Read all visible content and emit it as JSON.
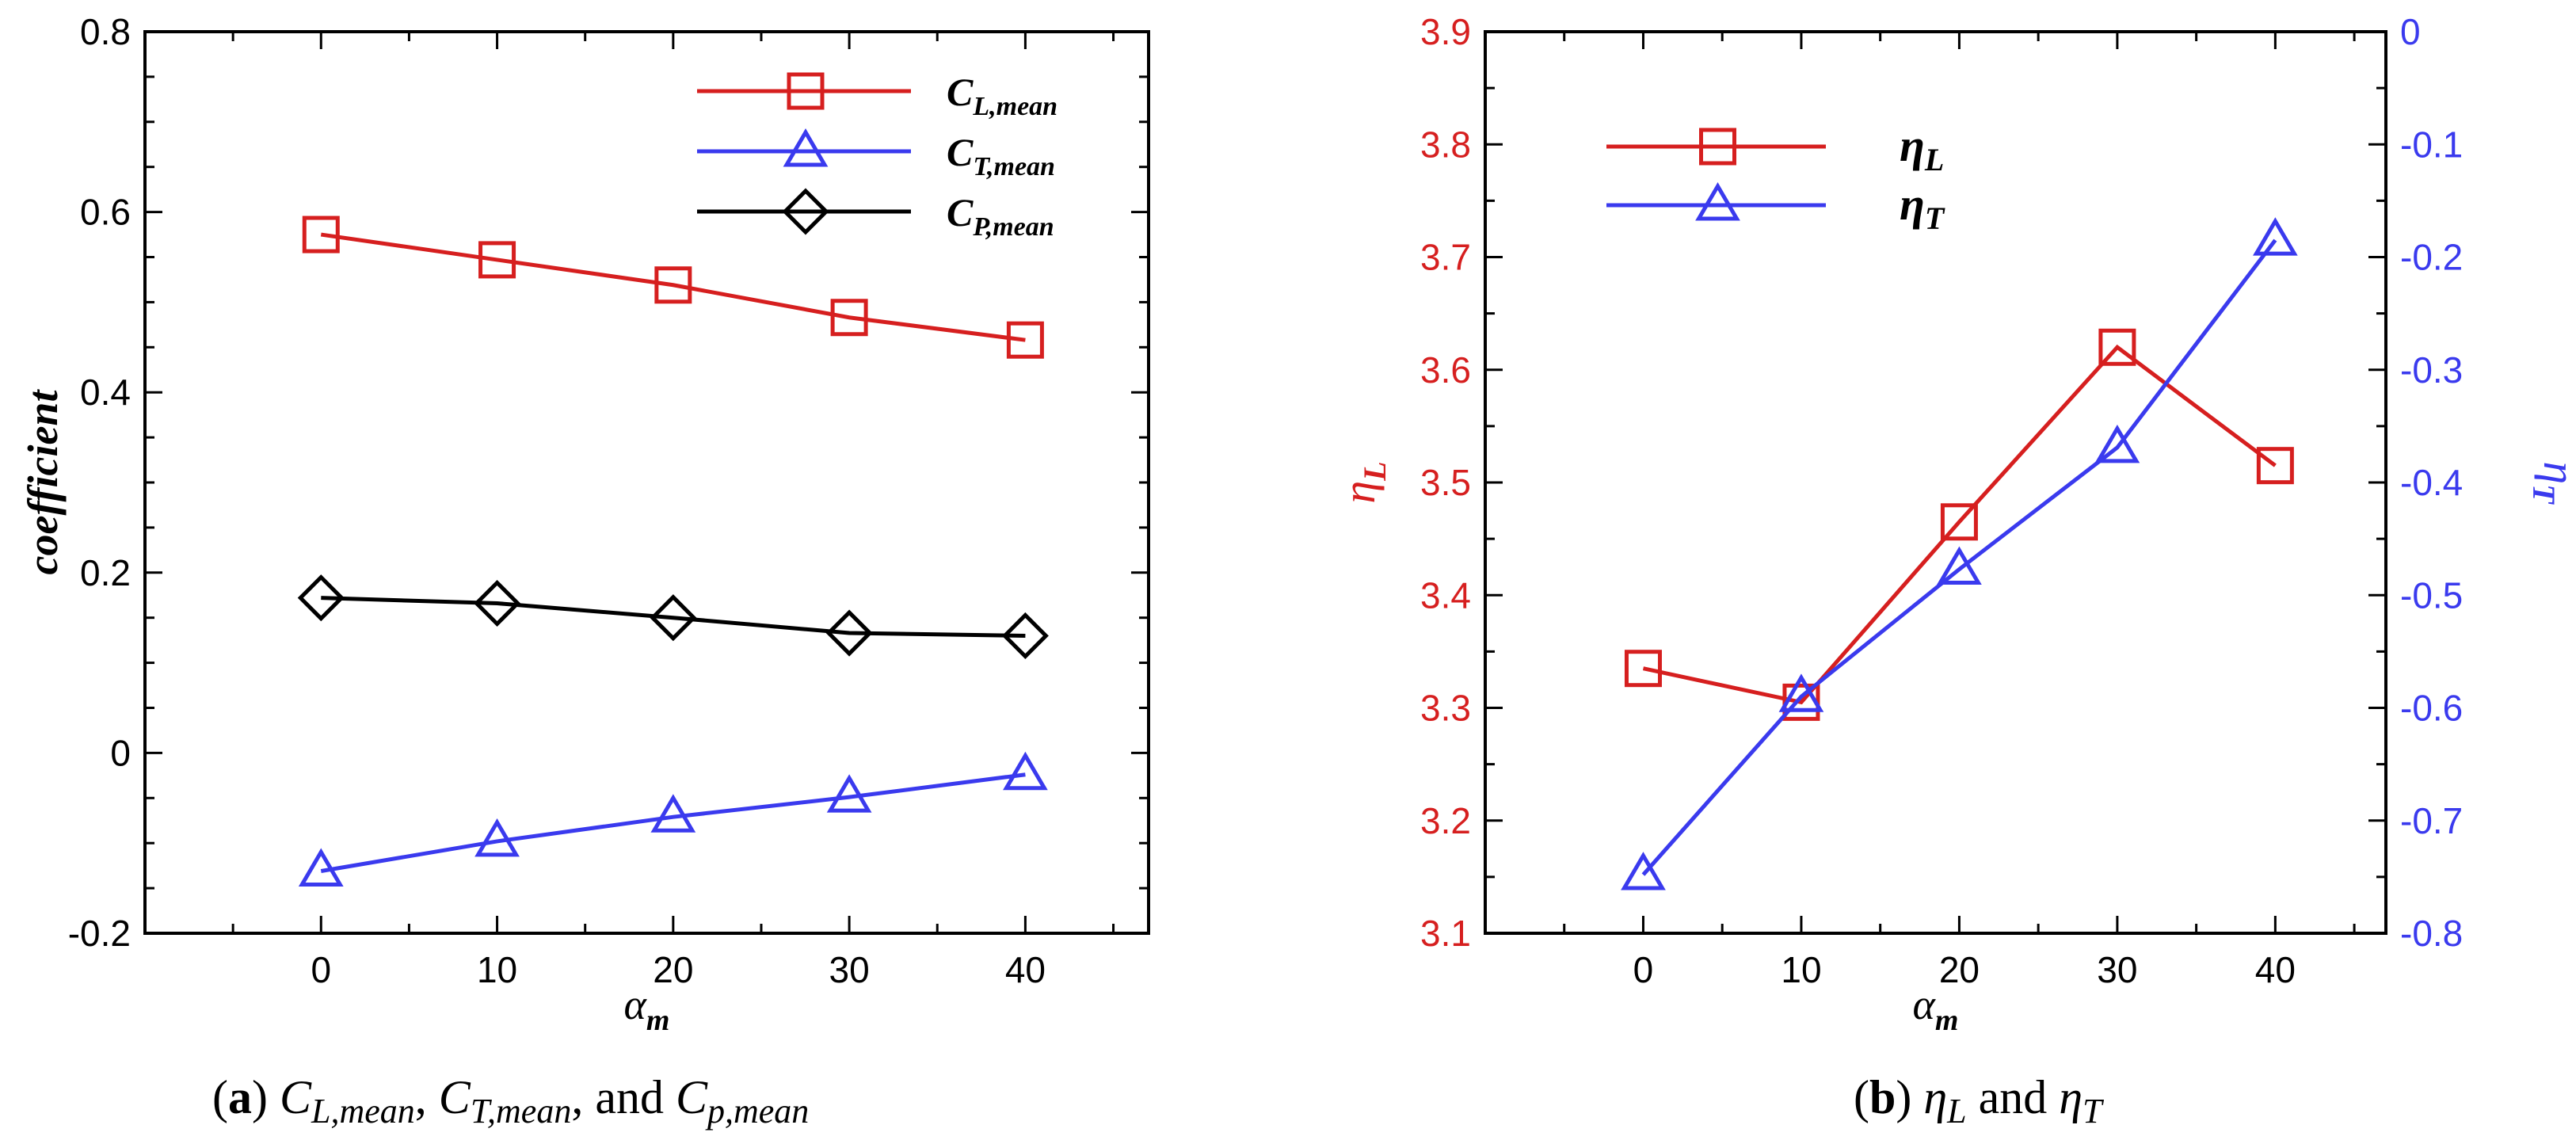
{
  "chart_data": [
    {
      "id": "a",
      "type": "line",
      "title": "",
      "x": [
        0,
        10,
        20,
        30,
        40
      ],
      "xlabel": "α",
      "xlabel_sub": "m",
      "ylabel": "coefficient",
      "xlim": [
        -10,
        47
      ],
      "ylim": [
        -0.2,
        0.8
      ],
      "xticks": [
        0,
        10,
        20,
        30,
        40
      ],
      "yticks": [
        -0.2,
        0,
        0.2,
        0.4,
        0.6,
        0.8
      ],
      "ytick_labels": [
        "-0.2",
        "0",
        "0.2",
        "0.4",
        "0.6",
        "0.8"
      ],
      "grid": false,
      "legend_position": "top-right",
      "series": [
        {
          "name": "C",
          "sub": "L,mean",
          "color": "#d61f1f",
          "marker": "square",
          "values": [
            0.575,
            0.547,
            0.519,
            0.483,
            0.458
          ]
        },
        {
          "name": "C",
          "sub": "T,mean",
          "color": "#3a3aee",
          "marker": "triangle",
          "values": [
            -0.131,
            -0.098,
            -0.071,
            -0.049,
            -0.024
          ]
        },
        {
          "name": "C",
          "sub": "P,mean",
          "color": "#000000",
          "marker": "diamond",
          "values": [
            0.172,
            0.166,
            0.15,
            0.133,
            0.13
          ]
        }
      ],
      "caption": {
        "label": "(a)",
        "parts": [
          {
            "text": "C",
            "sub": "L,mean",
            "sep": ","
          },
          {
            "text": "C",
            "sub": "T,mean",
            "sep": ", and"
          },
          {
            "text": "C",
            "sub": "p,mean",
            "sep": ""
          }
        ]
      }
    },
    {
      "id": "b",
      "type": "line",
      "title": "",
      "x": [
        0,
        10,
        20,
        30,
        40
      ],
      "xlabel": "α",
      "xlabel_sub": "m",
      "xlim": [
        -10,
        47
      ],
      "xticks": [
        0,
        10,
        20,
        30,
        40
      ],
      "grid": false,
      "legend_position": "top-left",
      "left_axis": {
        "label": "η",
        "label_sub": "L",
        "color": "#d61f1f",
        "ylim": [
          3.1,
          3.9
        ],
        "yticks": [
          3.1,
          3.2,
          3.3,
          3.4,
          3.5,
          3.6,
          3.7,
          3.8,
          3.9
        ],
        "ytick_labels": [
          "3.1",
          "3.2",
          "3.3",
          "3.4",
          "3.5",
          "3.6",
          "3.7",
          "3.8",
          "3.9"
        ]
      },
      "right_axis": {
        "label": "η",
        "label_sub": "T",
        "color": "#3a3aee",
        "ylim": [
          -0.8,
          0
        ],
        "yticks": [
          -0.8,
          -0.7,
          -0.6,
          -0.5,
          -0.4,
          -0.3,
          -0.2,
          -0.1,
          0
        ],
        "ytick_labels": [
          "-0.8",
          "-0.7",
          "-0.6",
          "-0.5",
          "-0.4",
          "-0.3",
          "-0.2",
          "-0.1",
          "0"
        ]
      },
      "series": [
        {
          "name": "η",
          "sub": "L",
          "color": "#d61f1f",
          "marker": "square",
          "axis": "left",
          "values": [
            3.335,
            3.305,
            3.465,
            3.62,
            3.515
          ]
        },
        {
          "name": "η",
          "sub": "T",
          "color": "#3a3aee",
          "marker": "triangle",
          "axis": "right",
          "values": [
            -0.748,
            -0.59,
            -0.477,
            -0.369,
            -0.185
          ]
        }
      ],
      "caption": {
        "label": "(b)",
        "parts": [
          {
            "text": "η",
            "sub": "L",
            "sep": " and"
          },
          {
            "text": "η",
            "sub": "T",
            "sep": ""
          }
        ]
      }
    }
  ]
}
